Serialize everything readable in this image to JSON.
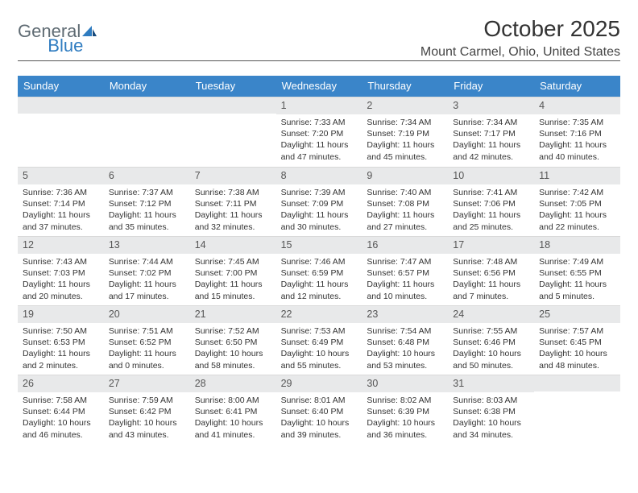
{
  "brand": {
    "general": "General",
    "blue": "Blue"
  },
  "title": "October 2025",
  "location": "Mount Carmel, Ohio, United States",
  "colors": {
    "header_bg": "#3a85c9",
    "header_text": "#ffffff",
    "daynum_bg": "#e8e9ea",
    "text": "#333333",
    "logo_gray": "#5f6b73",
    "logo_blue": "#2f7cc0"
  },
  "weekdays": [
    "Sunday",
    "Monday",
    "Tuesday",
    "Wednesday",
    "Thursday",
    "Friday",
    "Saturday"
  ],
  "weeks": [
    [
      {
        "day": "",
        "sunrise": "",
        "sunset": "",
        "daylight": ""
      },
      {
        "day": "",
        "sunrise": "",
        "sunset": "",
        "daylight": ""
      },
      {
        "day": "",
        "sunrise": "",
        "sunset": "",
        "daylight": ""
      },
      {
        "day": "1",
        "sunrise": "Sunrise: 7:33 AM",
        "sunset": "Sunset: 7:20 PM",
        "daylight": "Daylight: 11 hours and 47 minutes."
      },
      {
        "day": "2",
        "sunrise": "Sunrise: 7:34 AM",
        "sunset": "Sunset: 7:19 PM",
        "daylight": "Daylight: 11 hours and 45 minutes."
      },
      {
        "day": "3",
        "sunrise": "Sunrise: 7:34 AM",
        "sunset": "Sunset: 7:17 PM",
        "daylight": "Daylight: 11 hours and 42 minutes."
      },
      {
        "day": "4",
        "sunrise": "Sunrise: 7:35 AM",
        "sunset": "Sunset: 7:16 PM",
        "daylight": "Daylight: 11 hours and 40 minutes."
      }
    ],
    [
      {
        "day": "5",
        "sunrise": "Sunrise: 7:36 AM",
        "sunset": "Sunset: 7:14 PM",
        "daylight": "Daylight: 11 hours and 37 minutes."
      },
      {
        "day": "6",
        "sunrise": "Sunrise: 7:37 AM",
        "sunset": "Sunset: 7:12 PM",
        "daylight": "Daylight: 11 hours and 35 minutes."
      },
      {
        "day": "7",
        "sunrise": "Sunrise: 7:38 AM",
        "sunset": "Sunset: 7:11 PM",
        "daylight": "Daylight: 11 hours and 32 minutes."
      },
      {
        "day": "8",
        "sunrise": "Sunrise: 7:39 AM",
        "sunset": "Sunset: 7:09 PM",
        "daylight": "Daylight: 11 hours and 30 minutes."
      },
      {
        "day": "9",
        "sunrise": "Sunrise: 7:40 AM",
        "sunset": "Sunset: 7:08 PM",
        "daylight": "Daylight: 11 hours and 27 minutes."
      },
      {
        "day": "10",
        "sunrise": "Sunrise: 7:41 AM",
        "sunset": "Sunset: 7:06 PM",
        "daylight": "Daylight: 11 hours and 25 minutes."
      },
      {
        "day": "11",
        "sunrise": "Sunrise: 7:42 AM",
        "sunset": "Sunset: 7:05 PM",
        "daylight": "Daylight: 11 hours and 22 minutes."
      }
    ],
    [
      {
        "day": "12",
        "sunrise": "Sunrise: 7:43 AM",
        "sunset": "Sunset: 7:03 PM",
        "daylight": "Daylight: 11 hours and 20 minutes."
      },
      {
        "day": "13",
        "sunrise": "Sunrise: 7:44 AM",
        "sunset": "Sunset: 7:02 PM",
        "daylight": "Daylight: 11 hours and 17 minutes."
      },
      {
        "day": "14",
        "sunrise": "Sunrise: 7:45 AM",
        "sunset": "Sunset: 7:00 PM",
        "daylight": "Daylight: 11 hours and 15 minutes."
      },
      {
        "day": "15",
        "sunrise": "Sunrise: 7:46 AM",
        "sunset": "Sunset: 6:59 PM",
        "daylight": "Daylight: 11 hours and 12 minutes."
      },
      {
        "day": "16",
        "sunrise": "Sunrise: 7:47 AM",
        "sunset": "Sunset: 6:57 PM",
        "daylight": "Daylight: 11 hours and 10 minutes."
      },
      {
        "day": "17",
        "sunrise": "Sunrise: 7:48 AM",
        "sunset": "Sunset: 6:56 PM",
        "daylight": "Daylight: 11 hours and 7 minutes."
      },
      {
        "day": "18",
        "sunrise": "Sunrise: 7:49 AM",
        "sunset": "Sunset: 6:55 PM",
        "daylight": "Daylight: 11 hours and 5 minutes."
      }
    ],
    [
      {
        "day": "19",
        "sunrise": "Sunrise: 7:50 AM",
        "sunset": "Sunset: 6:53 PM",
        "daylight": "Daylight: 11 hours and 2 minutes."
      },
      {
        "day": "20",
        "sunrise": "Sunrise: 7:51 AM",
        "sunset": "Sunset: 6:52 PM",
        "daylight": "Daylight: 11 hours and 0 minutes."
      },
      {
        "day": "21",
        "sunrise": "Sunrise: 7:52 AM",
        "sunset": "Sunset: 6:50 PM",
        "daylight": "Daylight: 10 hours and 58 minutes."
      },
      {
        "day": "22",
        "sunrise": "Sunrise: 7:53 AM",
        "sunset": "Sunset: 6:49 PM",
        "daylight": "Daylight: 10 hours and 55 minutes."
      },
      {
        "day": "23",
        "sunrise": "Sunrise: 7:54 AM",
        "sunset": "Sunset: 6:48 PM",
        "daylight": "Daylight: 10 hours and 53 minutes."
      },
      {
        "day": "24",
        "sunrise": "Sunrise: 7:55 AM",
        "sunset": "Sunset: 6:46 PM",
        "daylight": "Daylight: 10 hours and 50 minutes."
      },
      {
        "day": "25",
        "sunrise": "Sunrise: 7:57 AM",
        "sunset": "Sunset: 6:45 PM",
        "daylight": "Daylight: 10 hours and 48 minutes."
      }
    ],
    [
      {
        "day": "26",
        "sunrise": "Sunrise: 7:58 AM",
        "sunset": "Sunset: 6:44 PM",
        "daylight": "Daylight: 10 hours and 46 minutes."
      },
      {
        "day": "27",
        "sunrise": "Sunrise: 7:59 AM",
        "sunset": "Sunset: 6:42 PM",
        "daylight": "Daylight: 10 hours and 43 minutes."
      },
      {
        "day": "28",
        "sunrise": "Sunrise: 8:00 AM",
        "sunset": "Sunset: 6:41 PM",
        "daylight": "Daylight: 10 hours and 41 minutes."
      },
      {
        "day": "29",
        "sunrise": "Sunrise: 8:01 AM",
        "sunset": "Sunset: 6:40 PM",
        "daylight": "Daylight: 10 hours and 39 minutes."
      },
      {
        "day": "30",
        "sunrise": "Sunrise: 8:02 AM",
        "sunset": "Sunset: 6:39 PM",
        "daylight": "Daylight: 10 hours and 36 minutes."
      },
      {
        "day": "31",
        "sunrise": "Sunrise: 8:03 AM",
        "sunset": "Sunset: 6:38 PM",
        "daylight": "Daylight: 10 hours and 34 minutes."
      },
      {
        "day": "",
        "sunrise": "",
        "sunset": "",
        "daylight": ""
      }
    ]
  ]
}
